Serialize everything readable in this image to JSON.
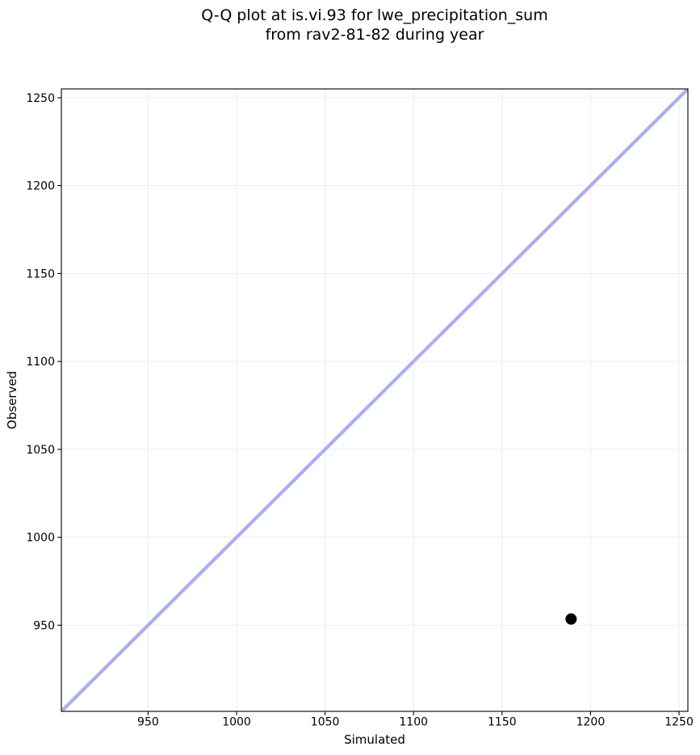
{
  "chart_data": {
    "type": "scatter",
    "title_line1": "Q-Q plot at is.vi.93 for lwe_precipitation_sum",
    "title_line2": "from rav2-81-82 during year",
    "xlabel": "Simulated",
    "ylabel": "Observed",
    "xlim": [
      901,
      1255
    ],
    "ylim": [
      901,
      1255
    ],
    "xticks": [
      950,
      1000,
      1050,
      1100,
      1150,
      1200,
      1250
    ],
    "yticks": [
      950,
      1000,
      1050,
      1100,
      1150,
      1200,
      1250
    ],
    "grid": true,
    "legend": "none",
    "identity_line": {
      "x": [
        901,
        1255
      ],
      "y": [
        901,
        1255
      ],
      "color": "#a8aff3",
      "width": 4.2
    },
    "points": [
      {
        "x": 1189,
        "y": 953.5
      }
    ],
    "point_style": {
      "color": "#000000",
      "radius": 7
    },
    "colors": {
      "grid": "#ededed",
      "frame": "#000000",
      "background": "#ffffff",
      "text": "#000000"
    }
  }
}
